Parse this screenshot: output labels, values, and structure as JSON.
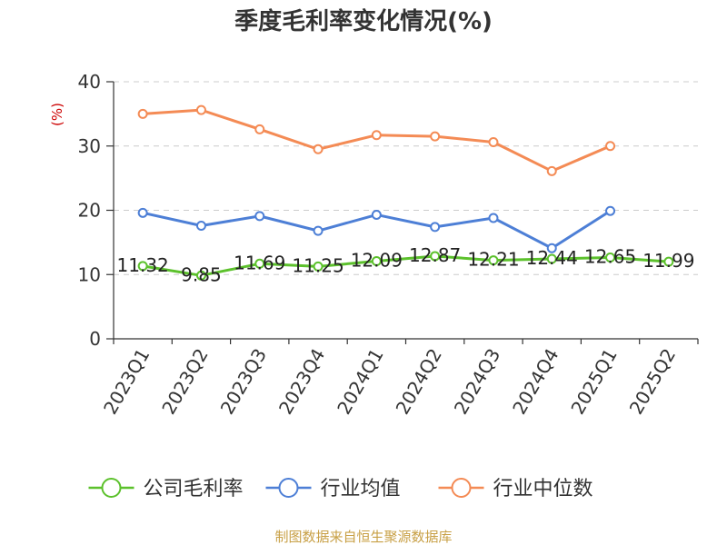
{
  "chart_data": {
    "type": "line",
    "title": "季度毛利率变化情况(%)",
    "unit_label": "(%)",
    "categories": [
      "2023Q1",
      "2023Q2",
      "2023Q3",
      "2023Q4",
      "2024Q1",
      "2024Q2",
      "2024Q3",
      "2024Q4",
      "2025Q1",
      "2025Q2"
    ],
    "ylim": [
      0,
      40
    ],
    "yticks": [
      0,
      10,
      20,
      30,
      40
    ],
    "grid": true,
    "legend_position": "bottom",
    "source": "制图数据来自恒生聚源数据库",
    "series": [
      {
        "name": "公司毛利率",
        "color": "#5cc12c",
        "show_labels": true,
        "values": [
          11.32,
          9.85,
          11.69,
          11.25,
          12.09,
          12.87,
          12.21,
          12.44,
          12.65,
          11.99
        ],
        "labels": [
          "11.32",
          "9.85",
          "11.69",
          "11.25",
          "12.09",
          "12.87",
          "12.21",
          "12.44",
          "12.65",
          "11.99"
        ]
      },
      {
        "name": "行业均值",
        "color": "#4d7fd6",
        "show_labels": false,
        "values": [
          19.6,
          17.6,
          19.1,
          16.8,
          19.3,
          17.4,
          18.8,
          14.1,
          19.9,
          null
        ]
      },
      {
        "name": "行业中位数",
        "color": "#f48b55",
        "show_labels": false,
        "values": [
          35.0,
          35.6,
          32.6,
          29.5,
          31.7,
          31.5,
          30.6,
          26.1,
          30.0,
          null
        ]
      }
    ]
  }
}
